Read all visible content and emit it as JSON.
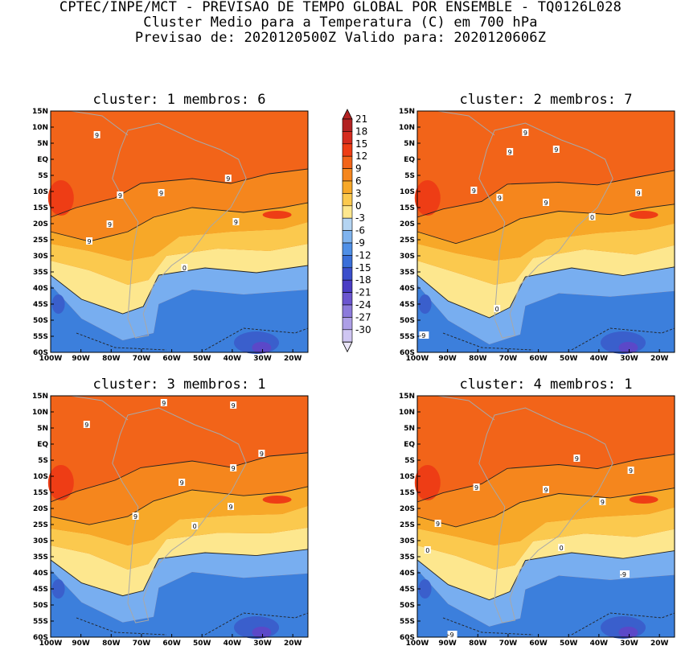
{
  "header": {
    "line1": "CPTEC/INPE/MCT - PREVISAO DE TEMPO GLOBAL POR ENSEMBLE - TQ0126L028",
    "line2": "Cluster Medio para a Temperatura (C) em 700 hPa",
    "line3": "Previsao de: 2020120500Z   Valido para: 2020120606Z"
  },
  "panels": [
    {
      "title": "cluster: 1  membros: 6"
    },
    {
      "title": "cluster: 2  membros: 7"
    },
    {
      "title": "cluster: 3  membros: 1"
    },
    {
      "title": "cluster: 4  membros: 1"
    }
  ],
  "axes": {
    "lat_labels": [
      "15N",
      "10N",
      "5N",
      "EQ",
      "5S",
      "10S",
      "15S",
      "20S",
      "25S",
      "30S",
      "35S",
      "40S",
      "45S",
      "50S",
      "55S",
      "60S"
    ],
    "lon_labels": [
      "100W",
      "90W",
      "80W",
      "70W",
      "60W",
      "50W",
      "40W",
      "30W",
      "20W"
    ]
  },
  "colorbar": {
    "labels": [
      "21",
      "18",
      "15",
      "12",
      "9",
      "6",
      "3",
      "0",
      "-3",
      "-6",
      "-9",
      "-12",
      "-15",
      "-18",
      "-21",
      "-24",
      "-27",
      "-30"
    ],
    "colors": [
      "#b22222",
      "#d52b1e",
      "#ee3d15",
      "#f26419",
      "#f5861d",
      "#f7a828",
      "#fbc94e",
      "#fde78e",
      "#b4d4f2",
      "#7fb3ee",
      "#4f8fe6",
      "#3a6fd9",
      "#3b4fcc",
      "#4a3dc4",
      "#6b56cf",
      "#8c7bdb",
      "#ad9fe6",
      "#cfc6f2"
    ]
  },
  "contour_labels": [
    [
      "9",
      "9",
      "9",
      "9",
      "9",
      "9",
      "9",
      "0"
    ],
    [
      "9",
      "9",
      "9",
      "9",
      "9",
      "9",
      "9",
      "0",
      "0",
      "-9"
    ],
    [
      "9",
      "9",
      "9",
      "9",
      "9",
      "9",
      "9",
      "9",
      "0"
    ],
    [
      "9",
      "9",
      "9",
      "9",
      "9",
      "9",
      "0",
      "0",
      "-9",
      "-9"
    ]
  ]
}
